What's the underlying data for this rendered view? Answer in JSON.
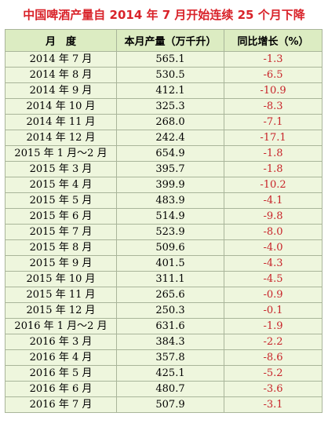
{
  "title": "中国啤酒产量自 2014 年 7 月开始连续 25 个月下降",
  "table": {
    "header": [
      "月　度",
      "本月产量（万千升）",
      "同比增长（%）"
    ],
    "rows": [
      [
        "2014 年 7 月",
        "565.1",
        "-1.3"
      ],
      [
        "2014 年 8 月",
        "530.5",
        "-6.5"
      ],
      [
        "2014 年 9 月",
        "412.1",
        "-10.9"
      ],
      [
        "2014 年 10 月",
        "325.3",
        "-8.3"
      ],
      [
        "2014 年 11 月",
        "268.0",
        "-7.1"
      ],
      [
        "2014 年 12 月",
        "242.4",
        "-17.1"
      ],
      [
        "2015 年 1 月～2 月",
        "654.9",
        "-1.8"
      ],
      [
        "2015 年 3 月",
        "395.7",
        "-1.8"
      ],
      [
        "2015 年 4 月",
        "399.9",
        "-10.2"
      ],
      [
        "2015 年 5 月",
        "483.9",
        "-4.1"
      ],
      [
        "2015 年 6 月",
        "514.9",
        "-9.8"
      ],
      [
        "2015 年 7 月",
        "523.9",
        "-8.0"
      ],
      [
        "2015 年 8 月",
        "509.6",
        "-4.0"
      ],
      [
        "2015 年 9 月",
        "401.5",
        "-4.3"
      ],
      [
        "2015 年 10 月",
        "311.1",
        "-4.5"
      ],
      [
        "2015 年 11 月",
        "265.6",
        "-0.9"
      ],
      [
        "2015 年 12 月",
        "250.3",
        "-0.1"
      ],
      [
        "2016 年 1 月～2 月",
        "631.6",
        "-1.9"
      ],
      [
        "2016 年 3 月",
        "384.3",
        "-2.2"
      ],
      [
        "2016 年 4 月",
        "357.8",
        "-8.6"
      ],
      [
        "2016 年 5 月",
        "425.1",
        "-5.2"
      ],
      [
        "2016 年 6 月",
        "480.7",
        "-3.6"
      ],
      [
        "2016 年 7 月",
        "507.9",
        "-3.1"
      ]
    ]
  }
}
